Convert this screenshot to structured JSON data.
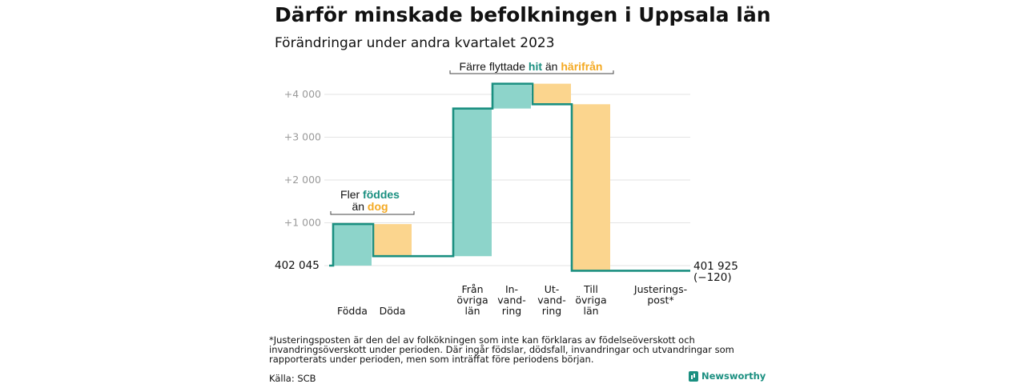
{
  "title": "Därför minskade befolkningen i Uppsala län",
  "subtitle": "Förändringar under andra kvartalet 2023",
  "chart_data": {
    "type": "waterfall",
    "start_value": 402045,
    "start_label": "402  045",
    "end_value": 401925,
    "end_label": "401 925",
    "end_change_label": "(−120)",
    "y_ticks": [
      {
        "value": 1000,
        "label": "+1  000"
      },
      {
        "value": 2000,
        "label": "+2  000"
      },
      {
        "value": 3000,
        "label": "+3  000"
      },
      {
        "value": 4000,
        "label": "+4  000"
      }
    ],
    "steps": [
      {
        "category": "Födda",
        "label_lines": [
          "Födda"
        ],
        "change": 970,
        "color": "#8dd4ca"
      },
      {
        "category": "Döda",
        "label_lines": [
          "Döda"
        ],
        "change": -750,
        "color": "#fbd58e"
      },
      {
        "category": "Från övriga län",
        "label_lines": [
          "Från",
          "övriga",
          "län"
        ],
        "change": 3450,
        "color": "#8dd4ca"
      },
      {
        "category": "Invandring",
        "label_lines": [
          "In-",
          "vand-",
          "ring"
        ],
        "change": 580,
        "color": "#8dd4ca"
      },
      {
        "category": "Utvandring",
        "label_lines": [
          "Ut-",
          "vand-",
          "ring"
        ],
        "change": -480,
        "color": "#fbd58e"
      },
      {
        "category": "Till övriga län",
        "label_lines": [
          "Till",
          "övriga",
          "län"
        ],
        "change": -3890,
        "color": "#fbd58e"
      },
      {
        "category": "Justeringspost*",
        "label_lines": [
          "Justerings-",
          "post*"
        ],
        "change": 0,
        "color": "#fbd58e"
      }
    ],
    "annotations": [
      {
        "lines": [
          [
            {
              "text": "Fler ",
              "style": "plain"
            },
            {
              "text": "föddes",
              "style": "teal"
            }
          ],
          [
            {
              "text": "än ",
              "style": "plain"
            },
            {
              "text": "dog",
              "style": "orange"
            }
          ]
        ]
      },
      {
        "lines": [
          [
            {
              "text": "Färre flyttade ",
              "style": "plain"
            },
            {
              "text": "hit",
              "style": "teal"
            },
            {
              "text": "  än ",
              "style": "plain"
            },
            {
              "text": "härifrån",
              "style": "orange"
            }
          ]
        ]
      }
    ],
    "colors": {
      "increase": "#8dd4ca",
      "decrease": "#fbd58e",
      "line": "#1a8f80",
      "grid": "#e3e3e3",
      "axis_label": "#9a9a9a"
    },
    "grid": true
  },
  "footnote": "*Justeringsposten är den del av folkökningen som inte kan förklaras av födelseöverskott och invandringsöverskott under perioden. Där ingår födslar, dödsfall, invandringar och utvandringar som rapporterats under perioden, men som inträffat före periodens början.",
  "source": "Källa: SCB",
  "brand": "Newsworthy"
}
